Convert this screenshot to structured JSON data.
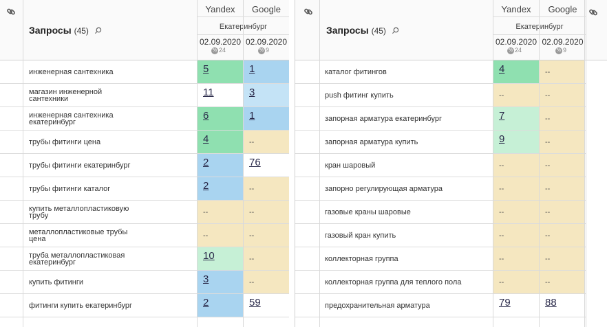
{
  "colors": {
    "green": "#8fe0b0",
    "light_green": "#c6f0d6",
    "blue": "#a9d4f0",
    "light_blue": "#c4e3f6",
    "beige": "#f5e7c0",
    "white": "#ffffff"
  },
  "left": {
    "title": "Запросы",
    "count": "(45)",
    "engines": [
      "Yandex",
      "Google"
    ],
    "region": "Екатеринбург",
    "dates": [
      "02.09.2020",
      "02.09.2020"
    ],
    "badges": [
      "24",
      "9"
    ],
    "rows": [
      {
        "q": "инженерная сантехника",
        "y": "5",
        "g": "1",
        "yc": "green",
        "gc": "blue"
      },
      {
        "q": "магазин инженерной сантехники",
        "y": "11",
        "g": "3",
        "yc": "white",
        "gc": "light_blue"
      },
      {
        "q": "инженерная сантехника екатеринбург",
        "y": "6",
        "g": "1",
        "yc": "green",
        "gc": "blue"
      },
      {
        "q": "трубы фитинги цена",
        "y": "4",
        "g": "--",
        "yc": "green",
        "gc": "beige"
      },
      {
        "q": "трубы фитинги екатеринбург",
        "y": "2",
        "g": "76",
        "yc": "blue",
        "gc": "white"
      },
      {
        "q": "трубы фитинги каталог",
        "y": "2",
        "g": "--",
        "yc": "blue",
        "gc": "beige"
      },
      {
        "q": "купить металлопластиковую трубу",
        "y": "--",
        "g": "--",
        "yc": "beige",
        "gc": "beige"
      },
      {
        "q": "металлопластиковые трубы цена",
        "y": "--",
        "g": "--",
        "yc": "beige",
        "gc": "beige"
      },
      {
        "q": "труба металлопластиковая екатеринбург",
        "y": "10",
        "g": "--",
        "yc": "light_green",
        "gc": "beige"
      },
      {
        "q": "купить фитинги",
        "y": "3",
        "g": "--",
        "yc": "blue",
        "gc": "beige"
      },
      {
        "q": "фитинги купить екатеринбург",
        "y": "2",
        "g": "59",
        "yc": "blue",
        "gc": "white"
      }
    ]
  },
  "right": {
    "title": "Запросы",
    "count": "(45)",
    "engines": [
      "Yandex",
      "Google"
    ],
    "region": "Екатеринбург",
    "dates": [
      "02.09.2020",
      "02.09.2020"
    ],
    "badges": [
      "24",
      "9"
    ],
    "rows": [
      {
        "q": "каталог фитингов",
        "y": "4",
        "g": "--",
        "yc": "green",
        "gc": "beige"
      },
      {
        "q": "push фитинг купить",
        "y": "--",
        "g": "--",
        "yc": "beige",
        "gc": "beige"
      },
      {
        "q": "запорная арматура екатеринбург",
        "y": "7",
        "g": "--",
        "yc": "light_green",
        "gc": "beige"
      },
      {
        "q": "запорная арматура купить",
        "y": "9",
        "g": "--",
        "yc": "light_green",
        "gc": "beige"
      },
      {
        "q": "кран шаровый",
        "y": "--",
        "g": "--",
        "yc": "beige",
        "gc": "beige"
      },
      {
        "q": "запорно регулирующая арматура",
        "y": "--",
        "g": "--",
        "yc": "beige",
        "gc": "beige"
      },
      {
        "q": "газовые краны шаровые",
        "y": "--",
        "g": "--",
        "yc": "beige",
        "gc": "beige"
      },
      {
        "q": "газовый кран купить",
        "y": "--",
        "g": "--",
        "yc": "beige",
        "gc": "beige"
      },
      {
        "q": "коллекторная группа",
        "y": "--",
        "g": "--",
        "yc": "beige",
        "gc": "beige"
      },
      {
        "q": "коллекторная группа для теплого пола",
        "y": "--",
        "g": "--",
        "yc": "beige",
        "gc": "beige"
      },
      {
        "q": "предохранительная арматура",
        "y": "79",
        "g": "88",
        "yc": "white",
        "gc": "white"
      }
    ]
  }
}
